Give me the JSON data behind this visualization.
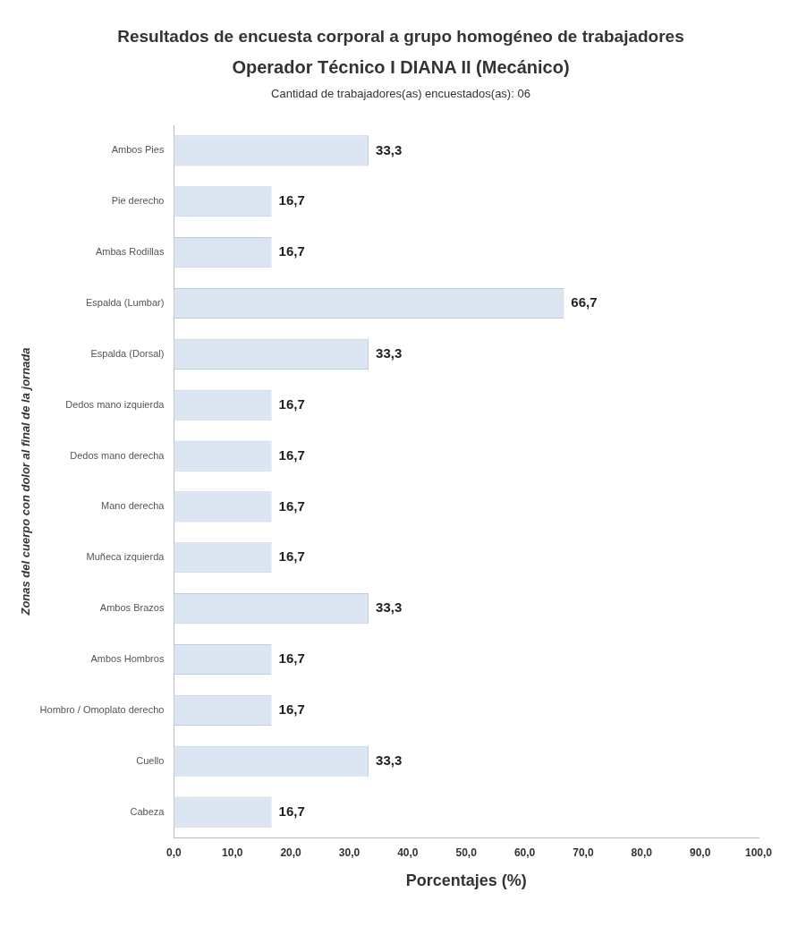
{
  "chart_data": {
    "type": "bar",
    "orientation": "horizontal",
    "title": "Resultados de encuesta corporal a grupo homogéneo de trabajadores",
    "subtitle": "Operador Técnico I DIANA II (Mecánico)",
    "annotations": [
      "Cantidad de trabajadores(as) encuestados(as): 06"
    ],
    "xlabel": "Porcentajes (%)",
    "ylabel": "Zonas del cuerpo con dolor al final de la jornada",
    "categories": [
      "Ambos Pies",
      "Pie derecho",
      "Ambas Rodillas",
      "Espalda (Lumbar)",
      "Espalda (Dorsal)",
      "Dedos mano izquierda",
      "Dedos mano derecha",
      "Mano derecha",
      "Muñeca izquierda",
      "Ambos Brazos",
      "Ambos Hombros",
      "Hombro / Omoplato derecho",
      "Cuello",
      "Cabeza"
    ],
    "values": [
      33.3,
      16.7,
      16.7,
      66.7,
      33.3,
      16.7,
      16.7,
      16.7,
      16.7,
      33.3,
      16.7,
      16.7,
      33.3,
      16.7
    ],
    "value_labels": [
      "33,3",
      "16,7",
      "16,7",
      "66,7",
      "33,3",
      "16,7",
      "16,7",
      "16,7",
      "16,7",
      "33,3",
      "16,7",
      "16,7",
      "33,3",
      "16,7"
    ],
    "color": "#dce6f2",
    "xlim": [
      0,
      100
    ],
    "xticks": [
      {
        "value": 0,
        "label": "0,0"
      },
      {
        "value": 10,
        "label": "10,0"
      },
      {
        "value": 20,
        "label": "20,0"
      },
      {
        "value": 30,
        "label": "30,0"
      },
      {
        "value": 40,
        "label": "40,0"
      },
      {
        "value": 50,
        "label": "50,0"
      },
      {
        "value": 60,
        "label": "60,0"
      },
      {
        "value": 70,
        "label": "70,0"
      },
      {
        "value": 80,
        "label": "80,0"
      },
      {
        "value": 90,
        "label": "90,0"
      },
      {
        "value": 100,
        "label": "100,0"
      }
    ],
    "grid": false,
    "legend": false
  }
}
